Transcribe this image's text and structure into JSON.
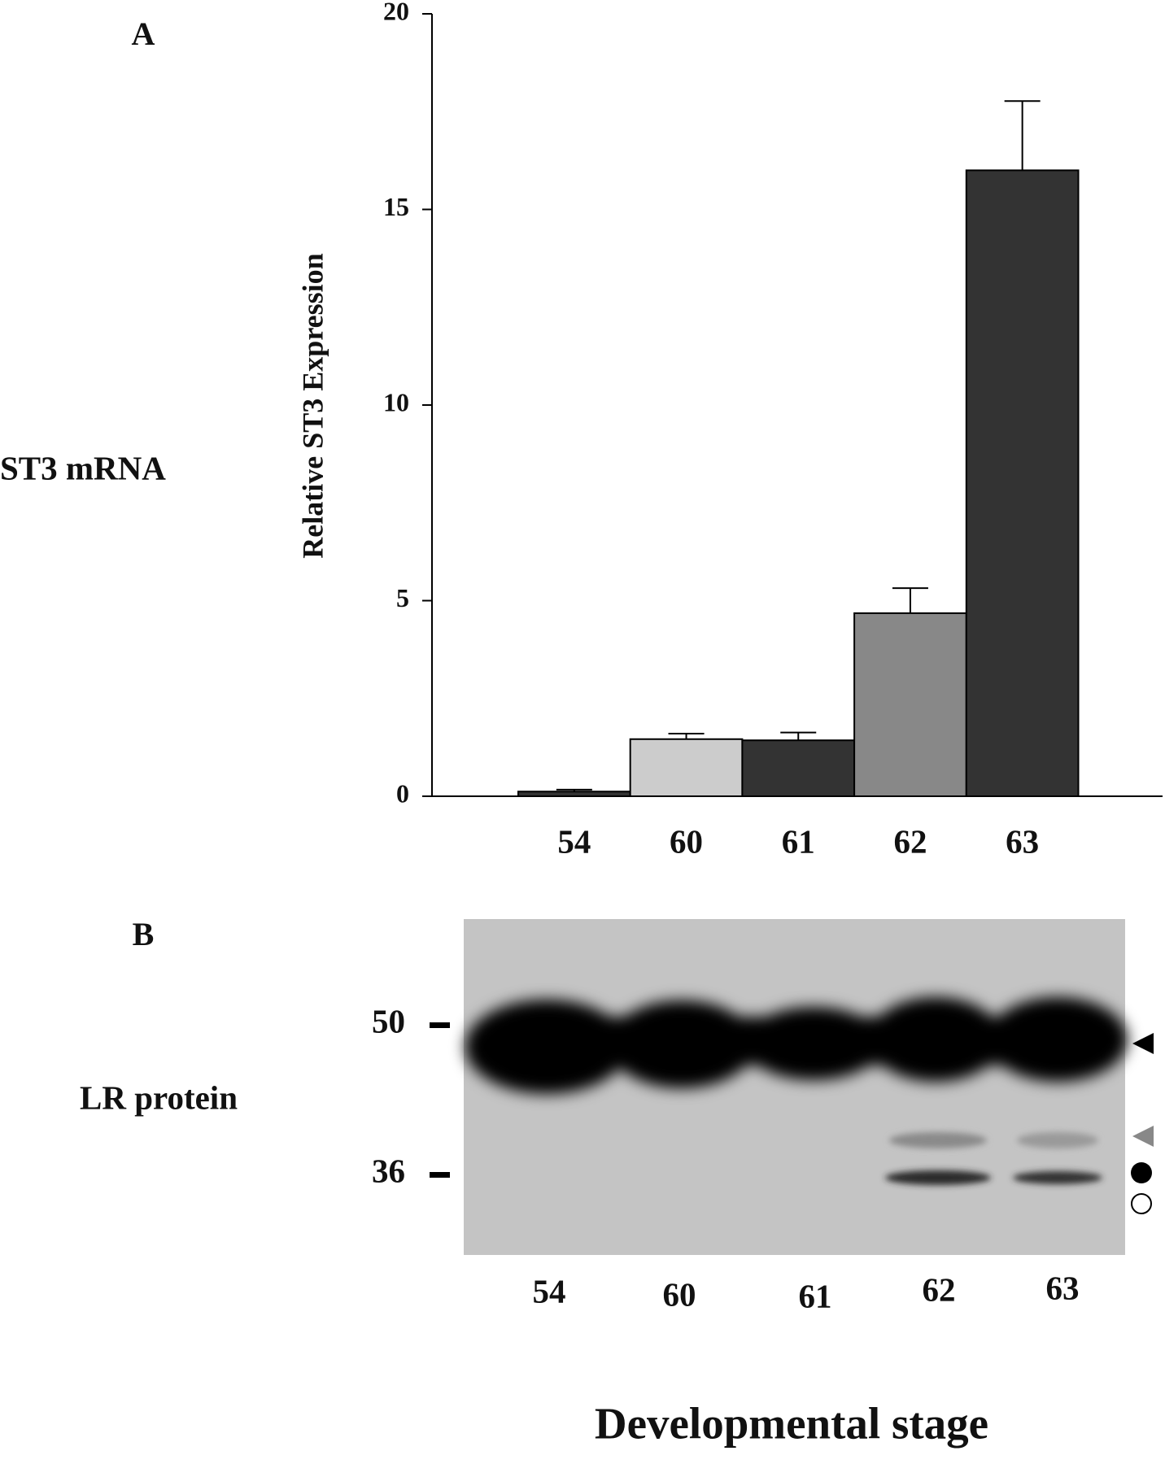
{
  "chart_data": {
    "type": "bar",
    "panel_label": "A",
    "row_label": "ST3 mRNA",
    "y_label": "Relative ST3 Expression",
    "categories": [
      "54",
      "60",
      "61",
      "62",
      "63"
    ],
    "values": [
      0.12,
      1.46,
      1.43,
      4.68,
      16.0
    ],
    "errors": [
      0.05,
      0.14,
      0.2,
      0.64,
      1.77
    ],
    "colors": [
      "#333333",
      "#cccccc",
      "#333333",
      "#888888",
      "#333333"
    ],
    "ylim": [
      0,
      20
    ],
    "yticks": [
      0,
      5,
      10,
      15,
      20
    ]
  },
  "blot": {
    "panel_label": "B",
    "row_label": "LR protein",
    "mw_markers": [
      50,
      36
    ],
    "lanes": [
      "54",
      "60",
      "61",
      "62",
      "63"
    ],
    "x_label": "Developmental stage"
  }
}
